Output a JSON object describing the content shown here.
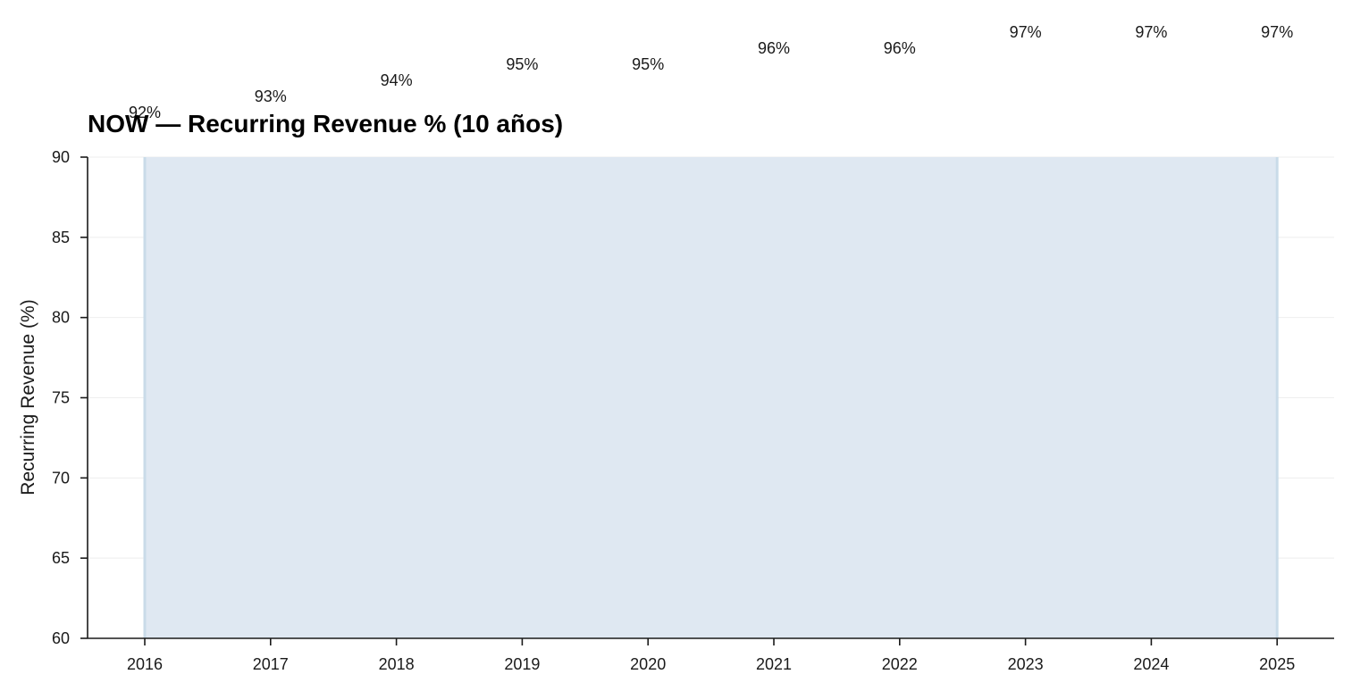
{
  "chart_data": {
    "type": "area",
    "title": "NOW — Recurring Revenue % (10 años)",
    "xlabel": "",
    "ylabel": "Recurring Revenue (%)",
    "x": [
      "2016",
      "2017",
      "2018",
      "2019",
      "2020",
      "2021",
      "2022",
      "2023",
      "2024",
      "2025"
    ],
    "values": [
      92,
      93,
      94,
      95,
      95,
      96,
      96,
      97,
      97,
      97
    ],
    "data_labels": [
      "92%",
      "93%",
      "94%",
      "95%",
      "95%",
      "96%",
      "96%",
      "97%",
      "97%",
      "97%"
    ],
    "ylim": [
      60,
      90
    ],
    "yticks": [
      60,
      65,
      70,
      75,
      80,
      85,
      90
    ],
    "grid": "horizontal",
    "legend": "none",
    "colors": {
      "fill": "#dfe8f2",
      "line": "#c9dbe9",
      "axis": "#1a1a1a",
      "grid": "#eeeeee"
    }
  }
}
